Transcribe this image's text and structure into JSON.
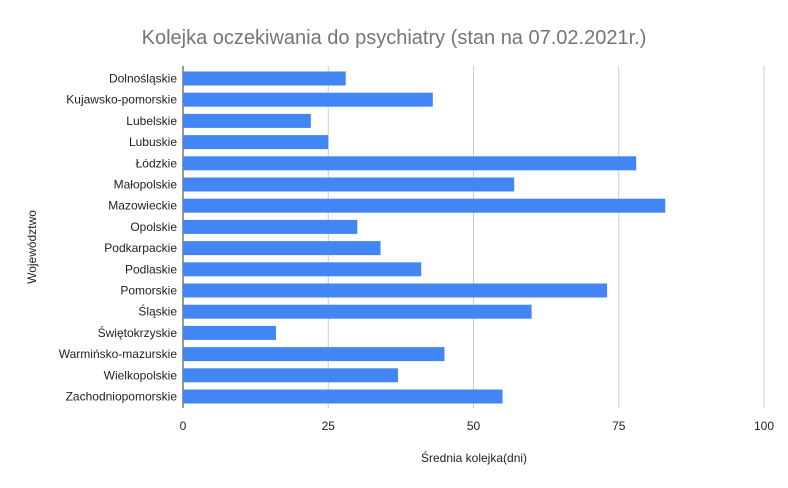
{
  "chart_data": {
    "type": "bar",
    "orientation": "horizontal",
    "title": "Kolejka oczekiwania do psychiatry (stan na 07.02.2021r.)",
    "xlabel": "Średnia kolejka(dni)",
    "ylabel": "Województwo",
    "xlim": [
      0,
      100
    ],
    "xticks": [
      "0",
      "25",
      "50",
      "75",
      "100"
    ],
    "grid": true,
    "legend": "none",
    "bar_color": "#4285f4",
    "categories": [
      "Dolnośląskie",
      "Kujawsko-pomorskie",
      "Lubelskie",
      "Lubuskie",
      "Łódzkie",
      "Małopolskie",
      "Mazowieckie",
      "Opolskie",
      "Podkarpackie",
      "Podlaskie",
      "Pomorskie",
      "Śląskie",
      "Świętokrzyskie",
      "Warmińsko-mazurskie",
      "Wielkopolskie",
      "Zachodniopomorskie"
    ],
    "values": [
      28,
      43,
      22,
      25,
      78,
      57,
      83,
      30,
      34,
      41,
      73,
      60,
      16,
      45,
      37,
      55
    ]
  }
}
